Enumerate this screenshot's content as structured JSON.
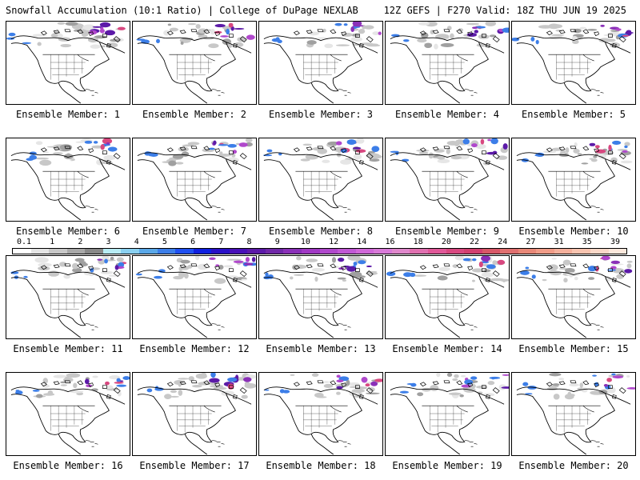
{
  "header": {
    "left_title": "Snowfall Accumulation (10:1 Ratio) | College of DuPage NEXLAB",
    "right_title": "12Z GEFS | F270 Valid: 18Z THU JUN 19 2025"
  },
  "panels": [
    {
      "label": "Ensemble Member: 1"
    },
    {
      "label": "Ensemble Member: 2"
    },
    {
      "label": "Ensemble Member: 3"
    },
    {
      "label": "Ensemble Member: 4"
    },
    {
      "label": "Ensemble Member: 5"
    },
    {
      "label": "Ensemble Member: 6"
    },
    {
      "label": "Ensemble Member: 7"
    },
    {
      "label": "Ensemble Member: 8"
    },
    {
      "label": "Ensemble Member: 9"
    },
    {
      "label": "Ensemble Member: 10"
    },
    {
      "label": "Ensemble Member: 11"
    },
    {
      "label": "Ensemble Member: 12"
    },
    {
      "label": "Ensemble Member: 13"
    },
    {
      "label": "Ensemble Member: 14"
    },
    {
      "label": "Ensemble Member: 15"
    },
    {
      "label": "Ensemble Member: 16"
    },
    {
      "label": "Ensemble Member: 17"
    },
    {
      "label": "Ensemble Member: 18"
    },
    {
      "label": "Ensemble Member: 19"
    },
    {
      "label": "Ensemble Member: 20"
    }
  ],
  "colorbar": {
    "tick_labels": [
      "0.1",
      "1",
      "2",
      "3",
      "4",
      "5",
      "6",
      "7",
      "8",
      "9",
      "10",
      "12",
      "14",
      "16",
      "18",
      "20",
      "22",
      "24",
      "27",
      "31",
      "35",
      "39"
    ],
    "colors": [
      "#ffffff",
      "#e4e4e4",
      "#c8c8c8",
      "#a8a8a8",
      "#888888",
      "#b8ecf4",
      "#8ad0f0",
      "#5aa8e8",
      "#3c7ee8",
      "#2050f0",
      "#1020e0",
      "#2a10c8",
      "#4810b8",
      "#5c1aa8",
      "#7028a8",
      "#8a30b8",
      "#a038c4",
      "#b048cc",
      "#c058d4",
      "#d068d8",
      "#d87ad8",
      "#e088cc",
      "#e070b0",
      "#e05898",
      "#d84880",
      "#d24070",
      "#d85868",
      "#e07070",
      "#e88878",
      "#f09c88",
      "#f4b09c",
      "#f8c4b0",
      "#fad8c8",
      "#fce8dc"
    ]
  }
}
